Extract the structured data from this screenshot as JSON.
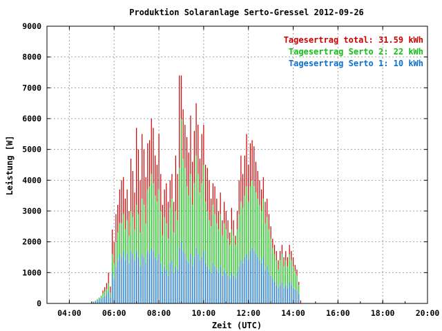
{
  "chart_data": {
    "type": "bar",
    "title": "Produktion Solaranlage Serto-Gressel 2012-09-26",
    "xlabel": "Zeit (UTC)",
    "ylabel": "Leistung [W]",
    "xlim": [
      "03:00",
      "20:00"
    ],
    "ylim": [
      0,
      9000
    ],
    "x_ticks": [
      "04:00",
      "06:00",
      "08:00",
      "10:00",
      "12:00",
      "14:00",
      "16:00",
      "18:00",
      "20:00"
    ],
    "y_ticks": [
      "0",
      "1000",
      "2000",
      "3000",
      "4000",
      "5000",
      "6000",
      "7000",
      "8000",
      "9000"
    ],
    "grid": true,
    "stacked": true,
    "legend_position": "top-right",
    "series": [
      {
        "name": "Tagesertrag Serto 1: 10 kWh",
        "color": "#0b6fd0",
        "values": [
          0,
          0,
          0,
          0,
          0,
          0,
          0,
          0,
          0,
          0,
          0,
          0,
          0,
          0,
          0,
          0,
          0,
          0,
          0,
          0,
          0,
          0,
          0,
          0,
          20,
          40,
          60,
          90,
          120,
          160,
          200,
          230,
          280,
          400,
          200,
          1000,
          800,
          1200,
          1400,
          1600,
          1500,
          1700,
          1400,
          1600,
          1300,
          1700,
          1600,
          1400,
          1700,
          1500,
          1200,
          1600,
          1500,
          1300,
          1700,
          1600,
          1800,
          1700,
          1500,
          1400,
          1600,
          1300,
          1000,
          1200,
          1100,
          900,
          1300,
          1400,
          1000,
          1200,
          1100,
          1800,
          2000,
          1700,
          1600,
          1400,
          1300,
          1600,
          1200,
          1500,
          1800,
          1600,
          1400,
          1500,
          1700,
          1300,
          1200,
          1100,
          1000,
          1300,
          1200,
          1100,
          1000,
          1200,
          900,
          1100,
          1000,
          900,
          800,
          1000,
          900,
          800,
          1000,
          1200,
          1400,
          1300,
          1500,
          1600,
          1400,
          1700,
          1800,
          1700,
          1600,
          1500,
          1400,
          1300,
          1500,
          1100,
          1200,
          1000,
          900,
          800,
          700,
          600,
          500,
          600,
          700,
          500,
          600,
          500,
          700,
          600,
          500,
          450,
          400,
          300,
          0,
          0,
          0,
          0,
          0,
          0,
          0,
          0,
          0,
          0,
          0,
          0,
          0,
          0,
          0,
          0,
          0,
          0,
          0,
          0,
          0,
          0,
          0,
          0,
          0,
          0,
          0,
          0,
          0,
          0,
          0,
          0,
          0,
          0,
          0,
          0,
          0,
          0,
          0,
          0,
          0,
          0,
          0,
          0,
          0,
          0,
          0,
          0,
          0,
          0,
          0,
          0,
          0,
          0,
          0,
          0,
          0,
          0,
          0,
          0,
          0,
          0,
          0,
          0,
          0,
          0,
          0,
          0,
          0,
          0,
          0,
          0,
          0,
          0,
          0,
          0
        ]
      },
      {
        "name": "Tagesertrag Serto 2: 22 kWh",
        "color": "#12c012",
        "values": [
          0,
          0,
          0,
          0,
          0,
          0,
          0,
          0,
          0,
          0,
          0,
          0,
          0,
          0,
          0,
          0,
          0,
          0,
          0,
          0,
          0,
          0,
          0,
          0,
          10,
          20,
          30,
          50,
          70,
          90,
          120,
          150,
          180,
          250,
          150,
          600,
          500,
          800,
          900,
          1000,
          1100,
          1200,
          1000,
          1100,
          900,
          1300,
          1200,
          1000,
          1500,
          1400,
          1100,
          1800,
          1700,
          1300,
          2000,
          2200,
          2400,
          2200,
          2000,
          1900,
          2100,
          1700,
          1200,
          1600,
          1500,
          1200,
          1800,
          2000,
          1300,
          1800,
          1600,
          2600,
          4000,
          3000,
          2800,
          2400,
          2200,
          2600,
          2000,
          2400,
          3000,
          2600,
          2200,
          2400,
          2800,
          2000,
          1800,
          1600,
          1500,
          1900,
          1700,
          1500,
          1400,
          1700,
          1300,
          1500,
          1400,
          1200,
          1100,
          1400,
          1300,
          1100,
          1400,
          1700,
          1900,
          1800,
          2000,
          2200,
          1900,
          2100,
          2200,
          2100,
          2000,
          1900,
          1800,
          1700,
          1900,
          1500,
          1600,
          1400,
          1200,
          1000,
          900,
          800,
          600,
          800,
          900,
          700,
          800,
          700,
          900,
          800,
          700,
          600,
          500,
          300,
          0,
          0,
          0,
          0,
          0,
          0,
          0,
          0,
          0,
          0,
          0,
          0,
          0,
          0,
          0,
          0,
          0,
          0,
          0,
          0,
          0,
          0,
          0,
          0,
          0,
          0,
          0,
          0,
          0,
          0,
          0,
          0,
          0,
          0,
          0,
          0,
          0,
          0,
          0,
          0,
          0,
          0,
          0,
          0,
          0,
          0,
          0,
          0,
          0,
          0,
          0,
          0,
          0,
          0,
          0,
          0,
          0,
          0,
          0,
          0,
          0,
          0,
          0,
          0,
          0,
          0,
          0,
          0,
          0,
          0,
          0,
          0,
          0,
          0,
          0,
          0,
          0
        ]
      },
      {
        "name": "Tagesertrag total: 31.59 kWh",
        "color": "#cc0000",
        "values": [
          0,
          0,
          0,
          0,
          0,
          0,
          0,
          0,
          0,
          0,
          0,
          0,
          0,
          0,
          0,
          0,
          0,
          0,
          0,
          0,
          0,
          0,
          0,
          0,
          0,
          0,
          0,
          0,
          0,
          0,
          100,
          150,
          200,
          350,
          200,
          800,
          700,
          900,
          900,
          1100,
          1400,
          1200,
          1000,
          1000,
          800,
          1700,
          1500,
          1200,
          2500,
          2100,
          1700,
          2100,
          1800,
          1500,
          1500,
          1500,
          1800,
          1800,
          1300,
          1200,
          1800,
          1200,
          1000,
          900,
          1300,
          1200,
          900,
          800,
          1000,
          1800,
          1500,
          3000,
          1400,
          1600,
          1400,
          1600,
          1400,
          1900,
          1400,
          1700,
          1700,
          1600,
          1100,
          1600,
          1300,
          1200,
          1400,
          1300,
          900,
          700,
          900,
          800,
          600,
          700,
          500,
          700,
          600,
          600,
          400,
          700,
          500,
          300,
          600,
          1100,
          1500,
          1100,
          1300,
          1700,
          1200,
          1400,
          1300,
          1300,
          1000,
          900,
          800,
          700,
          700,
          700,
          600,
          500,
          400,
          300,
          300,
          300,
          300,
          300,
          300,
          300,
          300,
          300,
          300,
          300,
          300,
          200,
          200,
          100,
          100,
          0,
          0,
          0,
          0,
          0,
          0,
          0,
          0,
          0,
          0,
          0,
          0,
          0,
          0,
          0,
          0,
          0,
          0,
          0,
          0,
          0,
          0,
          0,
          0,
          0,
          0,
          0,
          0,
          0,
          0,
          0,
          0,
          0,
          0,
          0,
          0,
          0,
          0,
          0,
          0,
          0,
          0,
          0,
          0,
          0,
          0,
          0,
          0,
          0,
          0,
          0,
          0,
          0,
          0,
          0,
          0,
          0,
          0,
          0,
          0,
          0,
          0,
          0,
          0,
          0,
          0,
          0,
          0,
          0,
          0,
          0,
          0,
          0,
          0,
          0,
          0,
          0,
          0,
          0,
          0,
          0,
          0
        ]
      }
    ],
    "x_start": "03:00",
    "x_step_minutes": 5
  }
}
